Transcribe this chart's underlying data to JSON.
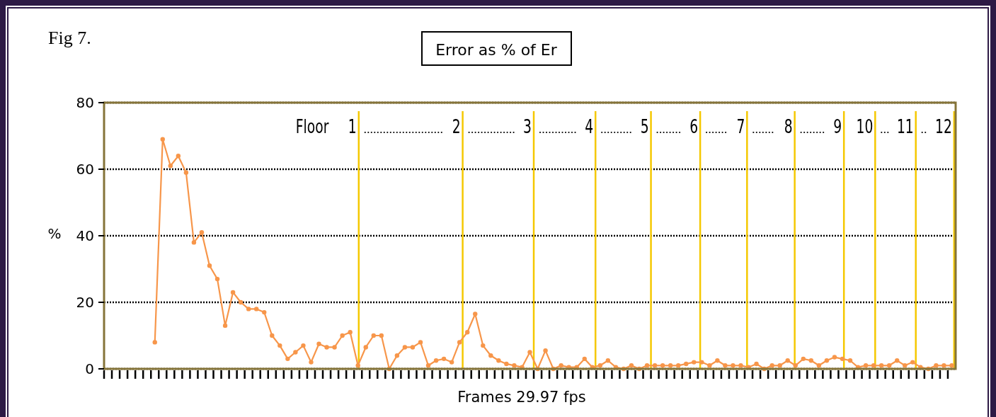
{
  "chart_data": {
    "type": "line",
    "title": "Error as % of  Er",
    "xlabel": "Frames 29.97 fps",
    "ylabel": "%",
    "annotations": [
      "Fig 7.",
      "Floor 1",
      "2",
      "3",
      "4",
      "5",
      "6",
      "7",
      "8",
      "9",
      "10",
      "11",
      "12"
    ],
    "categories": [
      null,
      null,
      null,
      null,
      null,
      null,
      null,
      null,
      null,
      null,
      null,
      null,
      null,
      null,
      null,
      null,
      null,
      null,
      null,
      null,
      null,
      null,
      null,
      null,
      null,
      null,
      null,
      null,
      null,
      null,
      null,
      null,
      null,
      null,
      null,
      null,
      null,
      null,
      null,
      null,
      null,
      null,
      null,
      null,
      null,
      null,
      null,
      null,
      null,
      null,
      null,
      null,
      null,
      null,
      null,
      null,
      null,
      null,
      null,
      null,
      null,
      null,
      null,
      null,
      null,
      null,
      null,
      null,
      null,
      null,
      null,
      null,
      null,
      null,
      null,
      null,
      null,
      null,
      null,
      null,
      null,
      null,
      null,
      null,
      null,
      null,
      null,
      null,
      null,
      null,
      null,
      null,
      null,
      null,
      null,
      null,
      null,
      null,
      null,
      null,
      null,
      null,
      null,
      null,
      null,
      null,
      null,
      null,
      null
    ],
    "series": [
      {
        "color": "#f7964a",
        "values": [
          null,
          null,
          null,
          null,
          null,
          null,
          8,
          69,
          61,
          64,
          59,
          38,
          41,
          31,
          27,
          13,
          23,
          20,
          18,
          18,
          17,
          10,
          7,
          3,
          5,
          7,
          2,
          7.5,
          6.5,
          6.5,
          10,
          11,
          1,
          6.5,
          10,
          10,
          0,
          4,
          6.5,
          6.5,
          8,
          1,
          2.5,
          3,
          2,
          8,
          11,
          16.5,
          7,
          4,
          2.5,
          1.5,
          1,
          0.5,
          5,
          0,
          5.5,
          0,
          1,
          0.5,
          0.5,
          3,
          0.5,
          1,
          2.5,
          0.5,
          0,
          1,
          0,
          1,
          1,
          1,
          1,
          1,
          1.5,
          2,
          2,
          1,
          2.5,
          1,
          1,
          1,
          0.5,
          1.5,
          0,
          1,
          1,
          2.5,
          1,
          3,
          2.5,
          1,
          2.5,
          3.5,
          3,
          2.5,
          0.5,
          1,
          1,
          1,
          1,
          2.5,
          1,
          2,
          0.5,
          0,
          1,
          1,
          1
        ]
      }
    ],
    "ylim": [
      0,
      80
    ],
    "yticks": [
      0,
      20,
      40,
      60,
      80
    ],
    "grid": "y",
    "marker": "circle",
    "line_style": "solid"
  }
}
